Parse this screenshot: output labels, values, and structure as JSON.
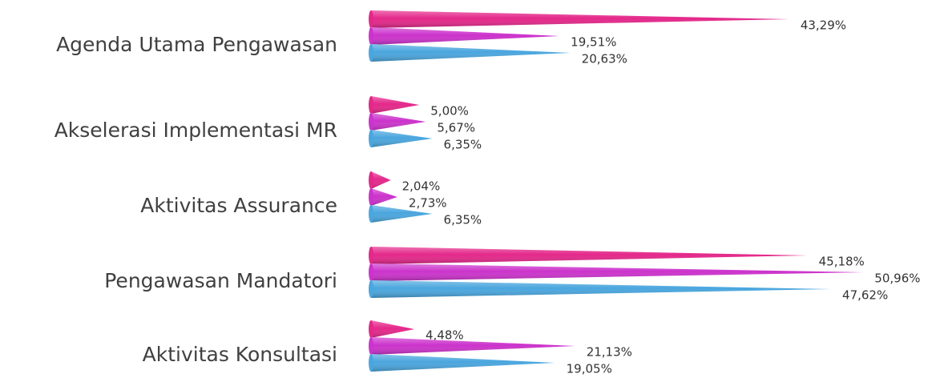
{
  "chart_data": {
    "type": "cone-bar",
    "categories": [
      "Agenda Utama Pengawasan",
      "Akselerasi Implementasi MR",
      "Aktivitas Assurance",
      "Pengawasan Mandatori",
      "Aktivitas Konsultasi"
    ],
    "series": [
      {
        "color": "#e4288a",
        "values": [
          43.29,
          5.0,
          2.04,
          45.18,
          4.48
        ],
        "value_labels": [
          "43,29%",
          "5,00%",
          "2,04%",
          "45,18%",
          "4,48%"
        ]
      },
      {
        "color": "#cc33cc",
        "values": [
          19.51,
          5.67,
          2.73,
          50.96,
          21.13
        ],
        "value_labels": [
          "19,51%",
          "5,67%",
          "2,73%",
          "50,96%",
          "21,13%"
        ]
      },
      {
        "color": "#4aa6de",
        "values": [
          20.63,
          6.35,
          6.35,
          47.62,
          19.05
        ],
        "value_labels": [
          "20,63%",
          "6,35%",
          "6,35%",
          "47,62%",
          "19,05%"
        ]
      }
    ],
    "xlim": [
      0,
      55
    ]
  }
}
